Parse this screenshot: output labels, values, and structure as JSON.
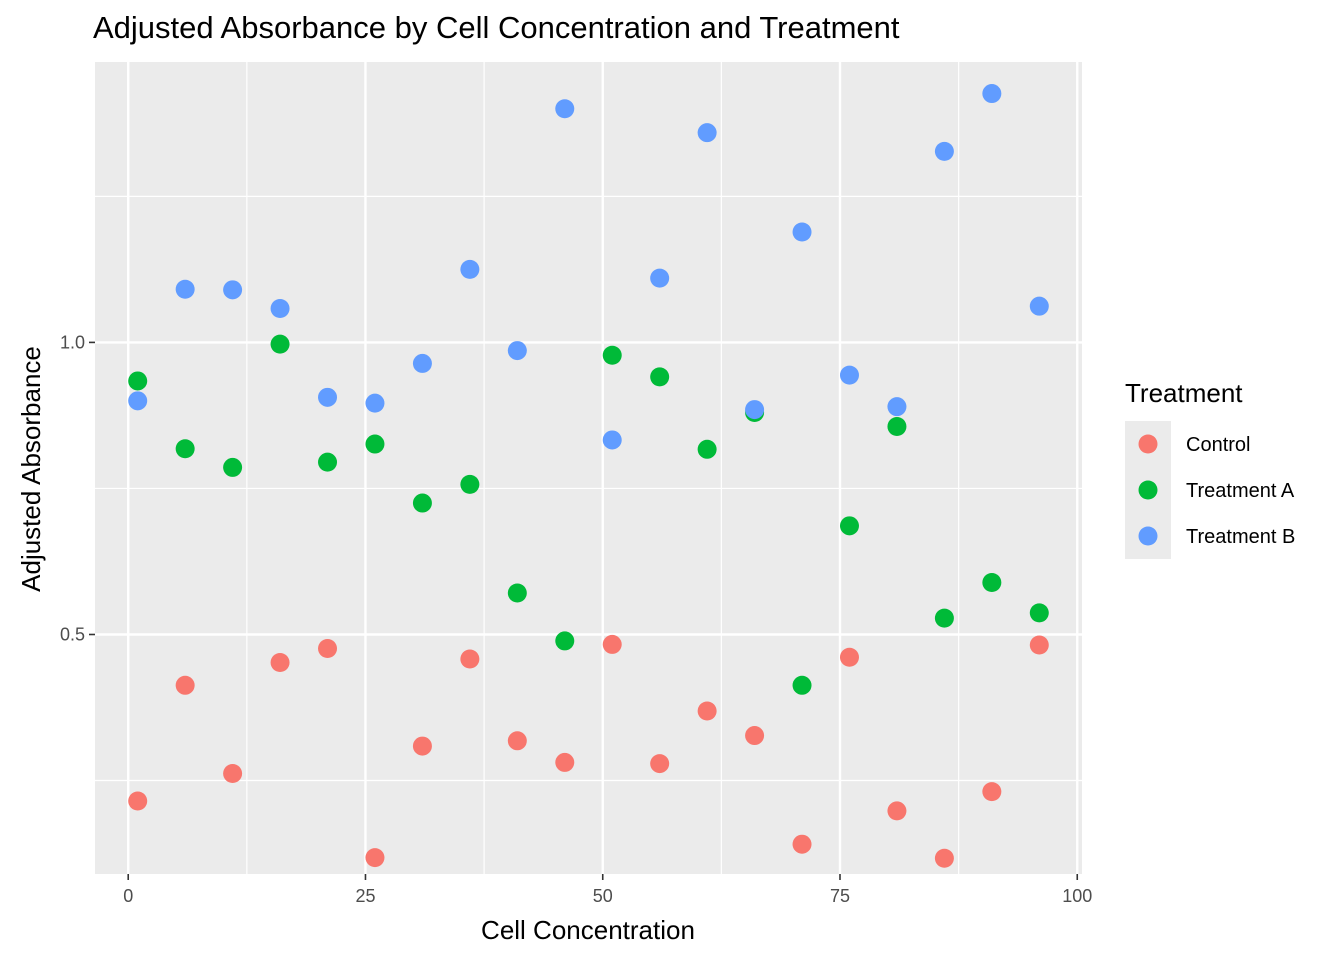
{
  "chart_data": {
    "type": "scatter",
    "title": "Adjusted Absorbance by Cell Concentration and Treatment",
    "xlabel": "Cell Concentration",
    "ylabel": "Adjusted Absorbance",
    "xlim": [
      -3.5,
      100.5
    ],
    "ylim": [
      0.09,
      1.48
    ],
    "x_ticks": [
      0,
      25,
      50,
      75,
      100
    ],
    "x_tick_labels": [
      "0",
      "25",
      "50",
      "75",
      "100"
    ],
    "y_ticks": [
      0.5,
      1.0
    ],
    "y_tick_labels": [
      "0.5",
      "1.0"
    ],
    "grid": true,
    "legend": {
      "title": "Treatment",
      "placement": "right"
    },
    "series": [
      {
        "name": "Control",
        "color": "#F8766D",
        "points": [
          {
            "x": 1,
            "y": 0.215
          },
          {
            "x": 6,
            "y": 0.413
          },
          {
            "x": 11,
            "y": 0.262
          },
          {
            "x": 16,
            "y": 0.452
          },
          {
            "x": 21,
            "y": 0.476
          },
          {
            "x": 26,
            "y": 0.118
          },
          {
            "x": 31,
            "y": 0.309
          },
          {
            "x": 36,
            "y": 0.458
          },
          {
            "x": 41,
            "y": 0.318
          },
          {
            "x": 46,
            "y": 0.281
          },
          {
            "x": 51,
            "y": 0.483
          },
          {
            "x": 56,
            "y": 0.279
          },
          {
            "x": 61,
            "y": 0.369
          },
          {
            "x": 66,
            "y": 0.327
          },
          {
            "x": 71,
            "y": 0.141
          },
          {
            "x": 76,
            "y": 0.461
          },
          {
            "x": 81,
            "y": 0.198
          },
          {
            "x": 86,
            "y": 0.117
          },
          {
            "x": 91,
            "y": 0.231
          },
          {
            "x": 96,
            "y": 0.482
          }
        ]
      },
      {
        "name": "Treatment A",
        "color": "#00BA38",
        "points": [
          {
            "x": 1,
            "y": 0.934
          },
          {
            "x": 6,
            "y": 0.818
          },
          {
            "x": 11,
            "y": 0.786
          },
          {
            "x": 16,
            "y": 0.997
          },
          {
            "x": 21,
            "y": 0.795
          },
          {
            "x": 26,
            "y": 0.826
          },
          {
            "x": 31,
            "y": 0.725
          },
          {
            "x": 36,
            "y": 0.757
          },
          {
            "x": 41,
            "y": 0.571
          },
          {
            "x": 46,
            "y": 0.489
          },
          {
            "x": 51,
            "y": 0.978
          },
          {
            "x": 56,
            "y": 0.941
          },
          {
            "x": 61,
            "y": 0.817
          },
          {
            "x": 66,
            "y": 0.88
          },
          {
            "x": 71,
            "y": 0.413
          },
          {
            "x": 76,
            "y": 0.686
          },
          {
            "x": 81,
            "y": 0.856
          },
          {
            "x": 86,
            "y": 0.528
          },
          {
            "x": 91,
            "y": 0.589
          },
          {
            "x": 96,
            "y": 0.537
          }
        ]
      },
      {
        "name": "Treatment B",
        "color": "#619CFF",
        "points": [
          {
            "x": 1,
            "y": 0.9
          },
          {
            "x": 6,
            "y": 1.091
          },
          {
            "x": 11,
            "y": 1.09
          },
          {
            "x": 16,
            "y": 1.058
          },
          {
            "x": 21,
            "y": 0.906
          },
          {
            "x": 26,
            "y": 0.896
          },
          {
            "x": 31,
            "y": 0.964
          },
          {
            "x": 36,
            "y": 1.125
          },
          {
            "x": 41,
            "y": 0.986
          },
          {
            "x": 46,
            "y": 1.4
          },
          {
            "x": 51,
            "y": 0.833
          },
          {
            "x": 56,
            "y": 1.11
          },
          {
            "x": 61,
            "y": 1.359
          },
          {
            "x": 66,
            "y": 0.885
          },
          {
            "x": 71,
            "y": 1.189
          },
          {
            "x": 76,
            "y": 0.944
          },
          {
            "x": 81,
            "y": 0.89
          },
          {
            "x": 86,
            "y": 1.327
          },
          {
            "x": 91,
            "y": 1.426
          },
          {
            "x": 96,
            "y": 1.062
          }
        ]
      }
    ]
  }
}
